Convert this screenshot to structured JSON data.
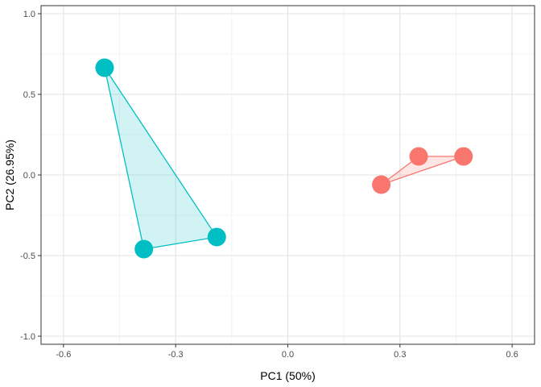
{
  "chart_data": {
    "type": "scatter",
    "xlabel": "PC1 (50%)",
    "ylabel": "PC2 (26.95%)",
    "xlim": [
      -0.66,
      0.66
    ],
    "ylim": [
      -1.05,
      1.05
    ],
    "xticks": [
      -0.6,
      -0.3,
      0.0,
      0.3,
      0.6
    ],
    "xtick_labels": [
      "-0.6",
      "-0.3",
      "0.0",
      "0.3",
      "0.6"
    ],
    "yticks": [
      -1.0,
      -0.5,
      0.0,
      0.5,
      1.0
    ],
    "ytick_labels": [
      "-1.0",
      "-0.5",
      "0.0",
      "0.5",
      "1.0"
    ],
    "grid": true,
    "legend": "none",
    "series": [
      {
        "color": "#F8766D",
        "points": [
          {
            "x": 0.25,
            "y": -0.06
          },
          {
            "x": 0.35,
            "y": 0.115
          },
          {
            "x": 0.47,
            "y": 0.115
          }
        ]
      },
      {
        "color": "#00BFC4",
        "points": [
          {
            "x": -0.49,
            "y": 0.665
          },
          {
            "x": -0.385,
            "y": -0.46
          },
          {
            "x": -0.19,
            "y": -0.385
          }
        ]
      }
    ]
  }
}
